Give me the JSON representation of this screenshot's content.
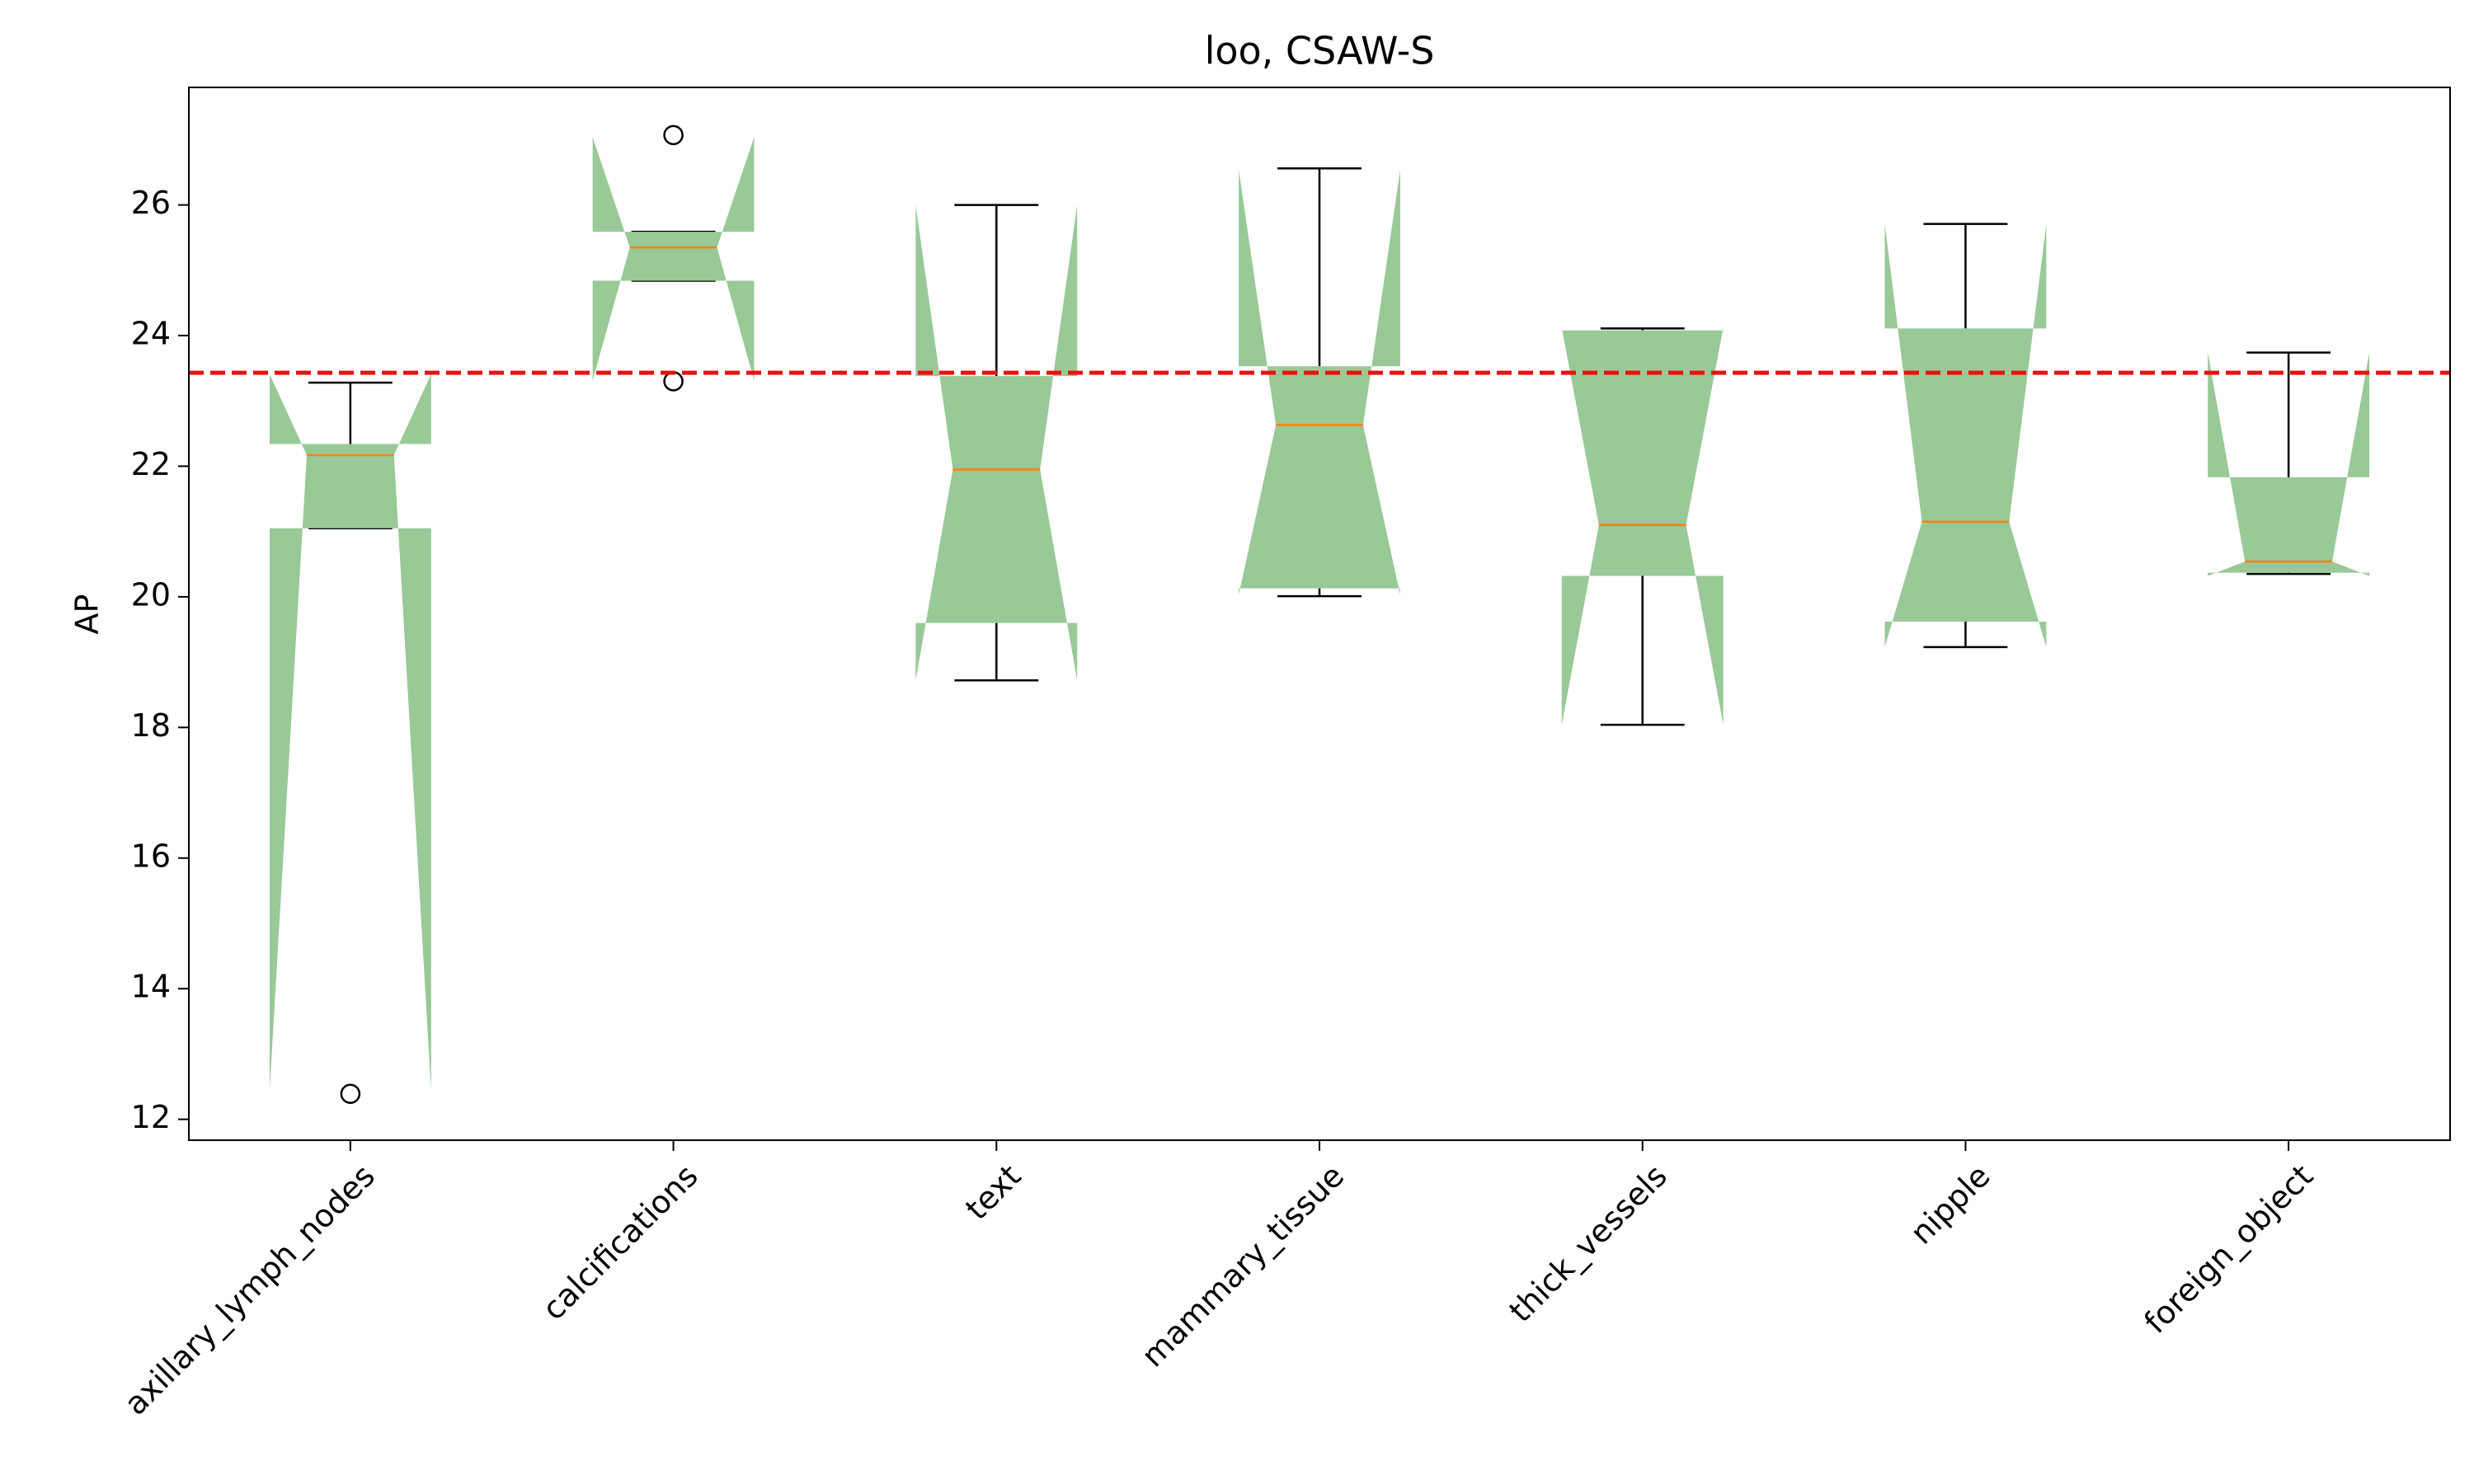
{
  "chart_data": {
    "type": "box",
    "title": "loo, CSAW-S",
    "y_label": "AP",
    "categories": [
      "axillary_lymph_nodes",
      "calcifications",
      "text",
      "mammary_tissue",
      "thick_vessels",
      "nipple",
      "foreign_object"
    ],
    "boxes": [
      {
        "q1": 21.05,
        "median": 22.17,
        "q3": 22.34,
        "notch_lo": 12.44,
        "notch_hi": 23.41,
        "whislo": 21.05,
        "whishi": 23.28,
        "fliers": [
          12.39
        ]
      },
      {
        "q1": 24.84,
        "median": 25.35,
        "q3": 25.59,
        "notch_lo": 23.31,
        "notch_hi": 27.04,
        "whislo": 24.84,
        "whishi": 25.59,
        "fliers": [
          27.07,
          23.3
        ]
      },
      {
        "q1": 19.6,
        "median": 21.95,
        "q3": 23.38,
        "notch_lo": 18.72,
        "notch_hi": 26.0,
        "whislo": 18.72,
        "whishi": 26.0,
        "fliers": []
      },
      {
        "q1": 20.13,
        "median": 22.63,
        "q3": 23.53,
        "notch_lo": 20.03,
        "notch_hi": 26.54,
        "whislo": 20.01,
        "whishi": 26.56,
        "fliers": []
      },
      {
        "q1": 20.32,
        "median": 21.1,
        "q3": 24.08,
        "notch_lo": 18.04,
        "notch_hi": 24.12,
        "whislo": 18.04,
        "whishi": 24.11,
        "fliers": []
      },
      {
        "q1": 19.62,
        "median": 21.15,
        "q3": 24.11,
        "notch_lo": 19.23,
        "notch_hi": 25.71,
        "whislo": 19.23,
        "whishi": 25.71,
        "fliers": []
      },
      {
        "q1": 20.37,
        "median": 20.54,
        "q3": 21.83,
        "notch_lo": 20.32,
        "notch_hi": 23.74,
        "whislo": 20.35,
        "whishi": 23.74,
        "fliers": []
      }
    ],
    "box_color": "#98c997",
    "median_color": "#ff7f0e",
    "reference_line": {
      "value": 23.43,
      "color": "#e8120c",
      "style": "dashed"
    },
    "ylim": [
      11.68,
      27.8
    ],
    "yticks": [
      12,
      14,
      16,
      18,
      20,
      22,
      24,
      26
    ]
  }
}
